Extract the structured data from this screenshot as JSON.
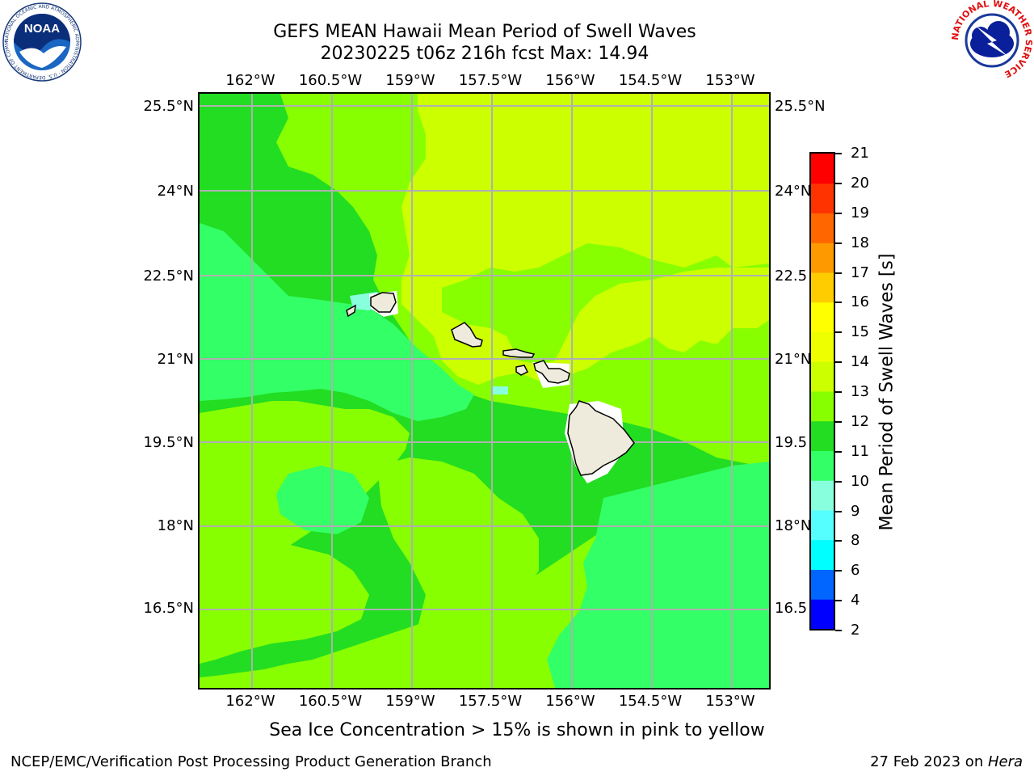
{
  "header": {
    "title_line1": "GEFS MEAN Hawaii Mean Period of Swell Waves",
    "title_line2": "20230225 t06z 216h fcst   Max: 14.94"
  },
  "logos": {
    "noaa_text": "NOAA",
    "noaa_ring_text": "NATIONAL OCEANIC AND ATMOSPHERIC ADMINISTRATION · U.S. DEPARTMENT OF COMMERCE",
    "nws_ring_text": "NATIONAL WEATHER SERVICE"
  },
  "map": {
    "lon_labels": [
      "162°W",
      "160.5°W",
      "159°W",
      "157.5°W",
      "156°W",
      "154.5°W",
      "153°W"
    ],
    "lat_labels": [
      "25.5°N",
      "24°N",
      "22.5°N",
      "21°N",
      "19.5°N",
      "18°N",
      "16.5°N"
    ],
    "lat_labels_right": [
      "25.5°N",
      "24°N",
      "22.5",
      "21°N",
      "19.5",
      "18°N",
      "16.5"
    ],
    "lon_range": [
      -163.0,
      -152.3
    ],
    "lat_range": [
      15.0,
      25.75
    ],
    "grid_lons": [
      -162,
      -160.5,
      -159,
      -157.5,
      -156,
      -154.5,
      -153
    ],
    "grid_lats": [
      25.5,
      24,
      22.5,
      21,
      19.5,
      18,
      16.5
    ],
    "colors": {
      "swell_10_11": "#33ff66",
      "swell_11_12": "#22dd22",
      "swell_12_13": "#88ff00",
      "swell_13_14": "#ccff00",
      "swell_9_10": "#88ffdd",
      "land": "#efebdc",
      "grid": "#b0b0b0"
    }
  },
  "colorbar": {
    "label": "Mean Period of Swell Waves [s]",
    "ticks": [
      "2",
      "4",
      "6",
      "8",
      "9",
      "10",
      "11",
      "12",
      "13",
      "14",
      "15",
      "16",
      "17",
      "18",
      "19",
      "20",
      "21"
    ],
    "colors": [
      "#0000ff",
      "#0066ff",
      "#00ffff",
      "#55ffff",
      "#88ffdd",
      "#33ff66",
      "#22dd22",
      "#88ff00",
      "#ccff00",
      "#eeff00",
      "#ffff00",
      "#ffcc00",
      "#ff9900",
      "#ff6600",
      "#ff3300",
      "#ff0000"
    ]
  },
  "caption": "Sea Ice Concentration > 15% is shown in pink to yellow",
  "footer": {
    "left": "NCEP/EMC/Verification Post Processing Product Generation Branch",
    "right_date": "27 Feb 2023 on ",
    "right_machine": "Hera"
  }
}
